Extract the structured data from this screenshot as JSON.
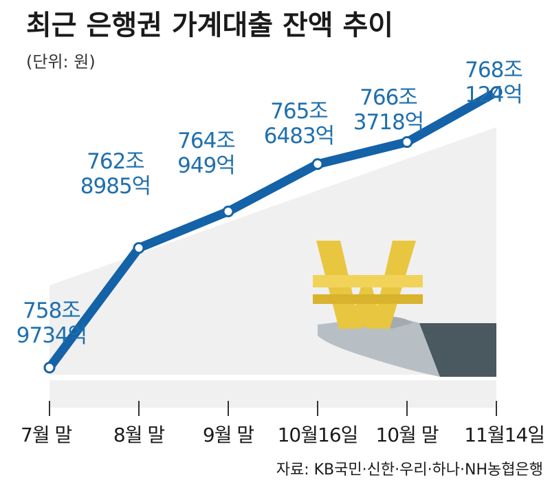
{
  "chart_data": {
    "type": "line",
    "title": "최근 은행권 가계대출 잔액 추이",
    "unit": "(단위: 원)",
    "categories": [
      "7월 말",
      "8월 말",
      "9월 말",
      "10월16일",
      "10월 말",
      "11월14일"
    ],
    "series": [
      {
        "values": [
          7589734,
          7628985,
          7640949,
          7656483,
          7663718,
          7680124
        ],
        "display_labels": [
          [
            "758조",
            "9734억"
          ],
          [
            "762조",
            "8985억"
          ],
          [
            "764조",
            "949억"
          ],
          [
            "765조",
            "6483억"
          ],
          [
            "766조",
            "3718억"
          ],
          [
            "768조",
            "124억"
          ]
        ]
      }
    ],
    "value_unit": "억원",
    "ylim": [
      7575000,
      7690000
    ],
    "grid": false,
    "source": "자료: KB국민·신한·우리·하나·NH농협은행"
  },
  "colors": {
    "line": "#1462a8",
    "label": "#1f6fae",
    "band": "#f0f0f0",
    "coin": "#e8c640",
    "hand": "#b8bfc4",
    "sleeve": "#4a5860"
  },
  "decoration": "won-coin-on-hand-icon"
}
